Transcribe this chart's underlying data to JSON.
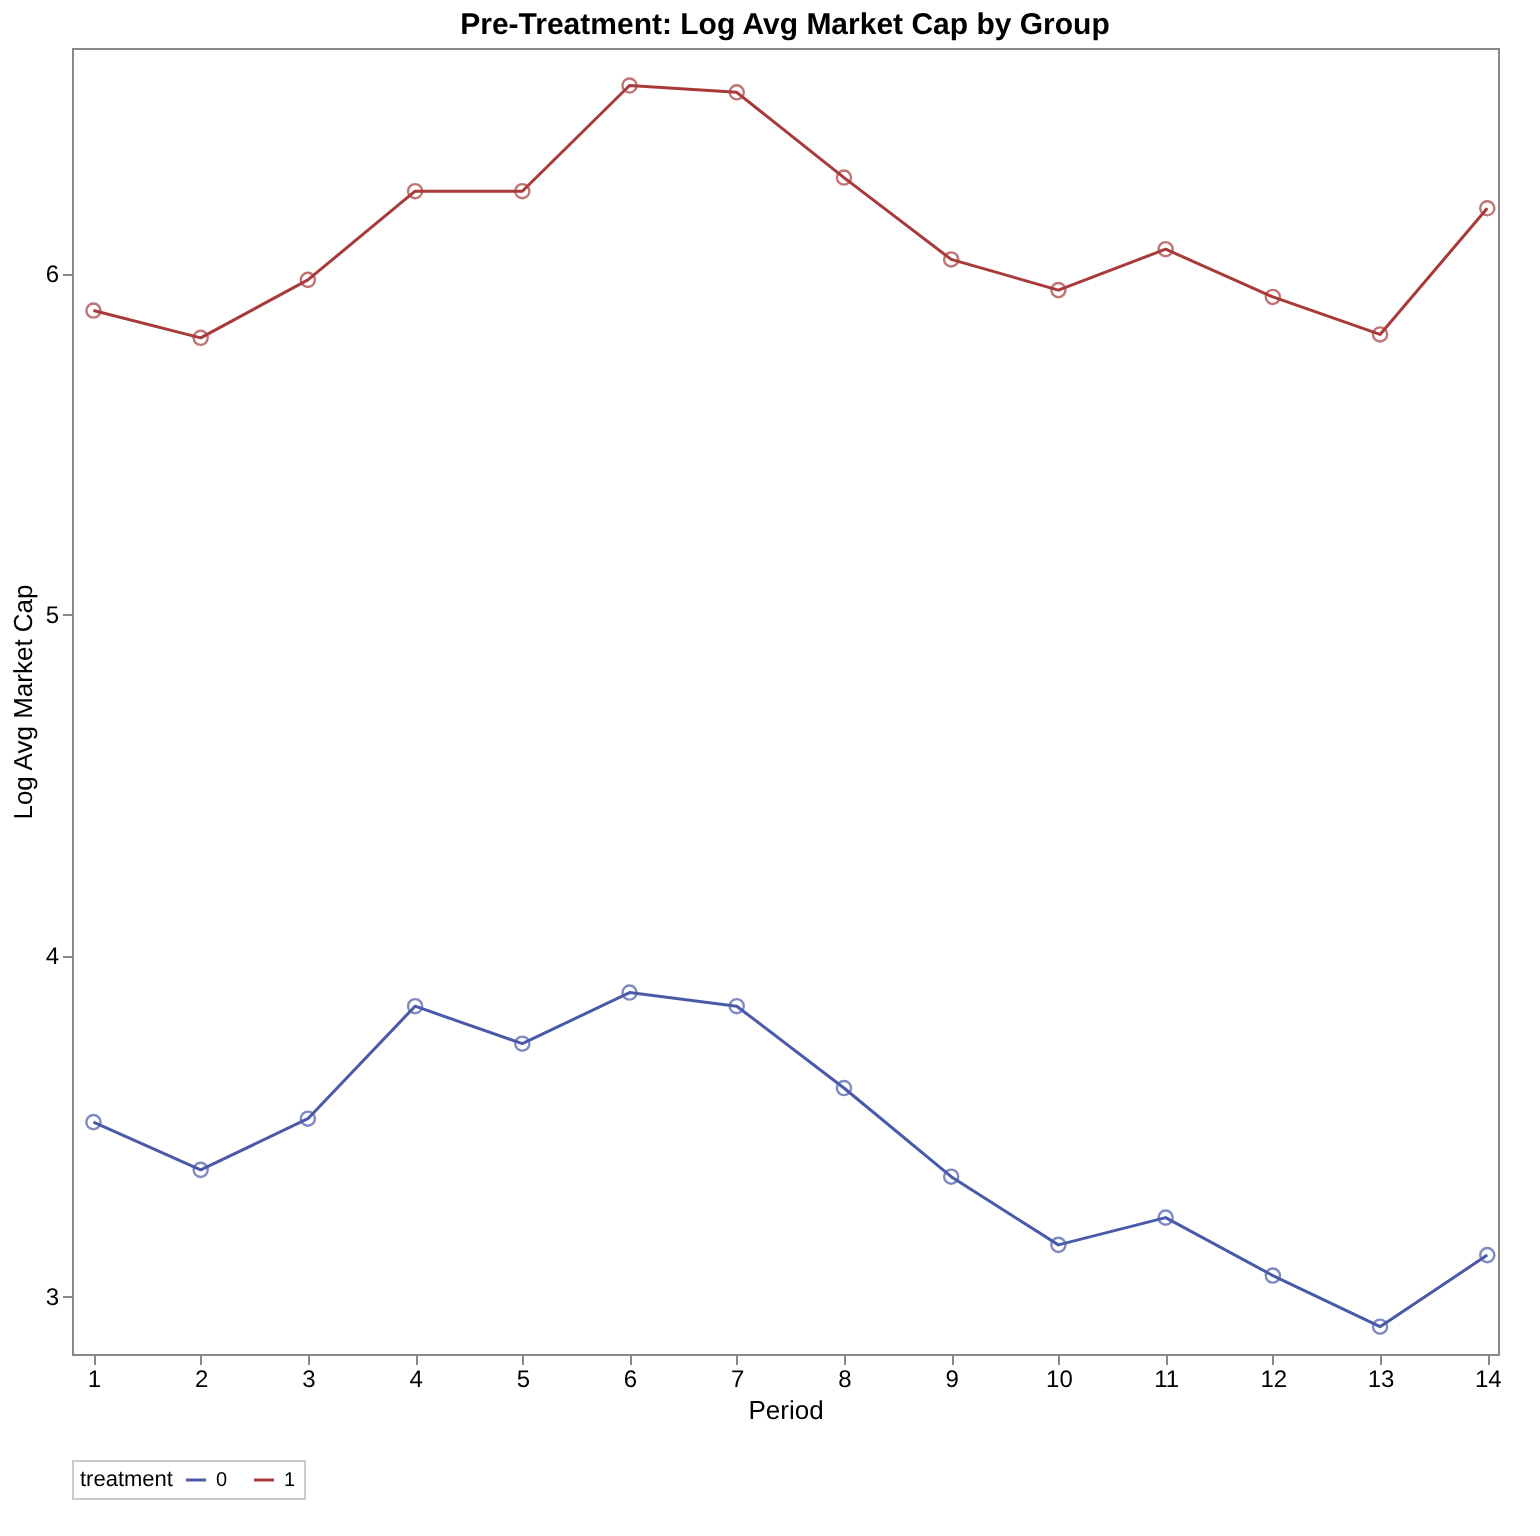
{
  "chart_data": {
    "type": "line",
    "title": "Pre-Treatment: Log Avg Market Cap by Group",
    "xlabel": "Period",
    "ylabel": "Log Avg Market Cap",
    "legend_title": "treatment",
    "x": [
      1,
      2,
      3,
      4,
      5,
      6,
      7,
      8,
      9,
      10,
      11,
      12,
      13,
      14
    ],
    "series": [
      {
        "name": "0",
        "color": "#4a5aa8",
        "values": [
          3.51,
          3.37,
          3.52,
          3.85,
          3.74,
          3.89,
          3.85,
          3.61,
          3.35,
          3.15,
          3.23,
          3.06,
          2.91,
          3.12
        ]
      },
      {
        "name": "1",
        "color": "#a83a3a",
        "values": [
          5.89,
          5.81,
          5.98,
          6.24,
          6.24,
          6.55,
          6.53,
          6.28,
          6.04,
          5.95,
          6.07,
          5.93,
          5.82,
          6.19
        ]
      }
    ],
    "xlim": [
      0.8,
      14.1
    ],
    "ylim": [
      2.83,
      6.66
    ],
    "xticks": [
      1,
      2,
      3,
      4,
      5,
      6,
      7,
      8,
      9,
      10,
      11,
      12,
      13,
      14
    ],
    "yticks": [
      3,
      4,
      5,
      6
    ],
    "grid": false,
    "legend": "bottom",
    "marker": "circle",
    "line_style": "solid"
  }
}
